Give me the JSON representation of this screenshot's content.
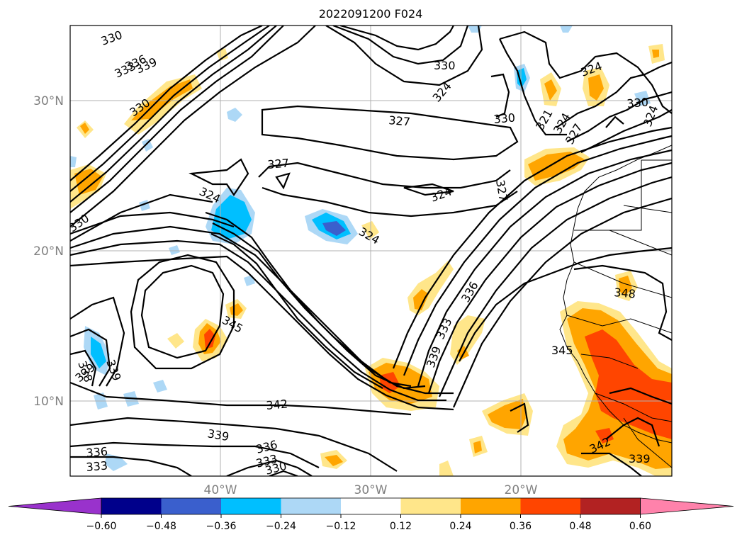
{
  "title": "2022091200 F024",
  "lat_labels": [
    "30°N",
    "20°N",
    "10°N"
  ],
  "lon_labels": [
    "40°W",
    "30°W",
    "20°W"
  ],
  "contour_labels": [
    "330",
    "333",
    "336",
    "339",
    "330",
    "324",
    "327",
    "327",
    "324",
    "324",
    "324",
    "327",
    "330",
    "321",
    "324",
    "327",
    "330",
    "324",
    "330",
    "324",
    "336",
    "333",
    "339",
    "345",
    "348",
    "345",
    "342",
    "339",
    "336",
    "333",
    "330",
    "336",
    "333",
    "339",
    "338",
    "339",
    "330",
    "342",
    "339"
  ],
  "colorbar": {
    "ticks": [
      "−0.60",
      "−0.48",
      "−0.36",
      "−0.24",
      "−0.12",
      "0.12",
      "0.24",
      "0.36",
      "0.48",
      "0.60"
    ],
    "colors": [
      "#9932cc",
      "#00008b",
      "#3a5fcd",
      "#00bfff",
      "#add8f6",
      "#ffffff",
      "#ffe68a",
      "#ffa500",
      "#ff4500",
      "#b22222",
      "#ff82ab"
    ],
    "under_color": "#9932cc",
    "over_color": "#ff82ab"
  }
}
